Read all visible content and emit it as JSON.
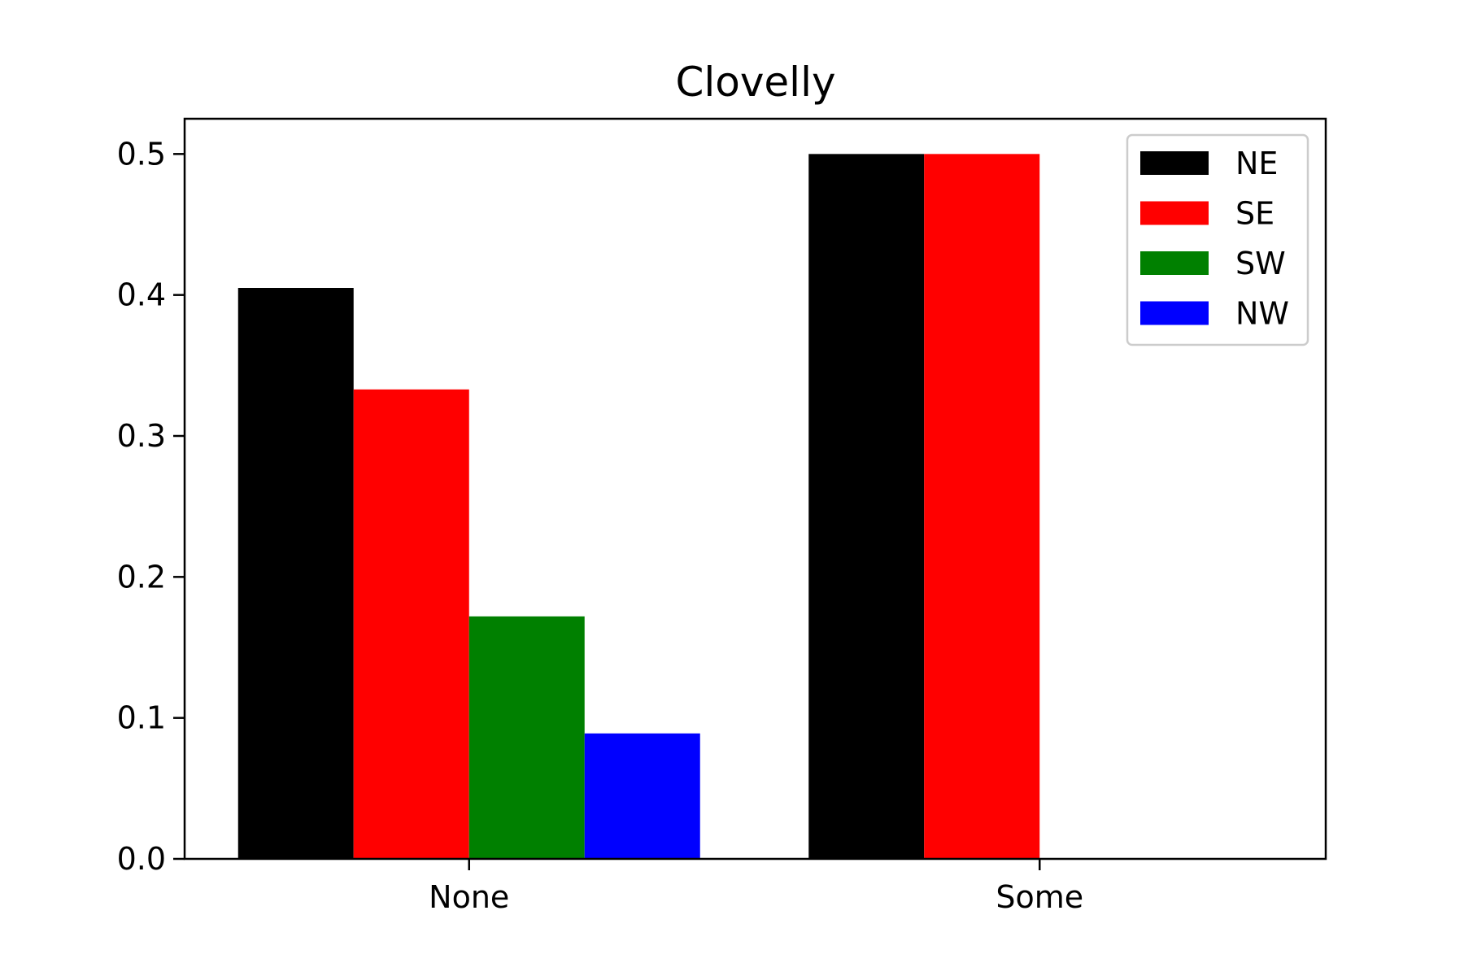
{
  "chart_data": {
    "type": "bar",
    "title": "Clovelly",
    "xlabel": "",
    "ylabel": "",
    "categories": [
      "None",
      "Some"
    ],
    "series": [
      {
        "name": "NE",
        "color": "#000000",
        "values": [
          0.405,
          0.5
        ]
      },
      {
        "name": "SE",
        "color": "#ff0000",
        "values": [
          0.333,
          0.5
        ]
      },
      {
        "name": "SW",
        "color": "#008000",
        "values": [
          0.172,
          0.0
        ]
      },
      {
        "name": "NW",
        "color": "#0000ff",
        "values": [
          0.089,
          0.0
        ]
      }
    ],
    "ylim": [
      0,
      0.525
    ],
    "yticks": [
      "0.0",
      "0.1",
      "0.2",
      "0.3",
      "0.4",
      "0.5"
    ],
    "grid": false,
    "legend_position": "top-right"
  }
}
